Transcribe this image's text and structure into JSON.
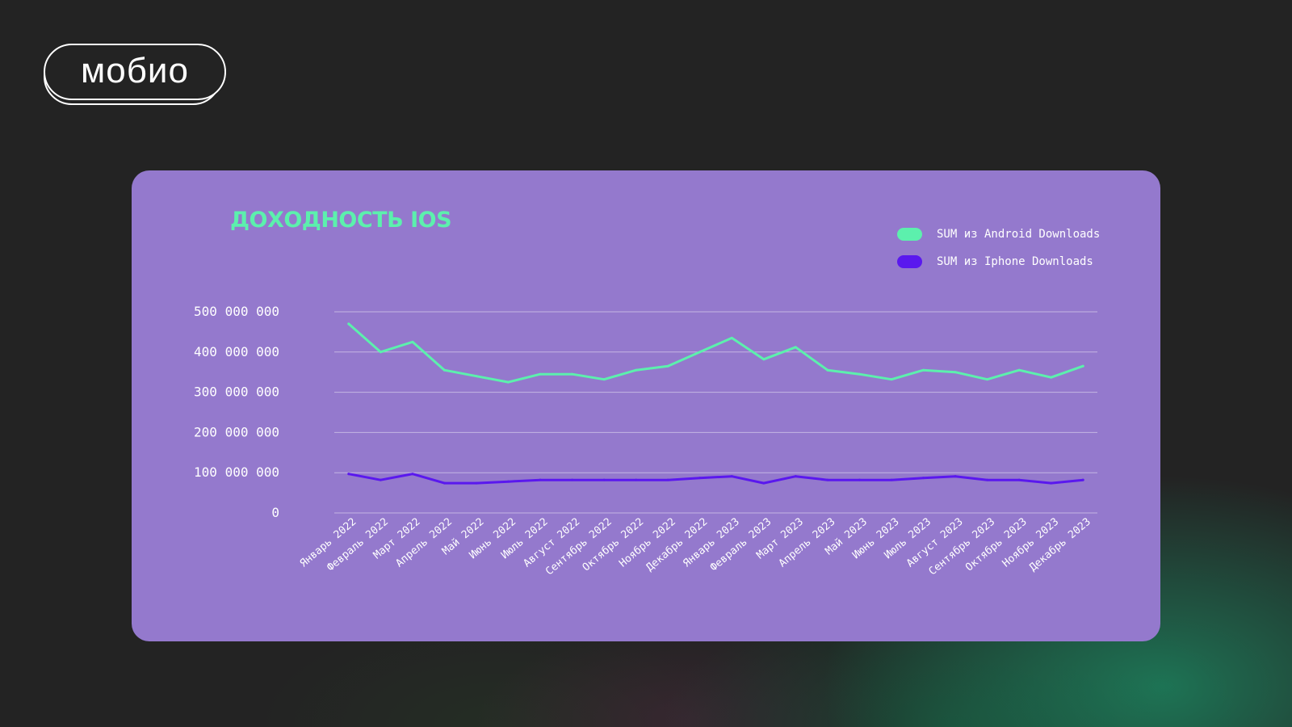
{
  "logo": {
    "text": "мобио"
  },
  "chart_data": {
    "type": "line",
    "title": "ДОХОДНОСТЬ IOS",
    "xlabel": "",
    "ylabel": "",
    "ylim": [
      0,
      500000000
    ],
    "y_ticks": [
      {
        "value": 0,
        "label": "0"
      },
      {
        "value": 100000000,
        "label": "100 000 000"
      },
      {
        "value": 200000000,
        "label": "200 000 000"
      },
      {
        "value": 300000000,
        "label": "300 000 000"
      },
      {
        "value": 400000000,
        "label": "400 000 000"
      },
      {
        "value": 500000000,
        "label": "500 000 000"
      }
    ],
    "grid": true,
    "legend_position": "top-right",
    "categories": [
      "Январь 2022",
      "Февраль 2022",
      "Март 2022",
      "Апрель 2022",
      "Май 2022",
      "Июнь 2022",
      "Июль 2022",
      "Август 2022",
      "Сентябрь 2022",
      "Октябрь 2022",
      "Ноябрь 2022",
      "Декабрь 2022",
      "Январь 2023",
      "Февраль 2023",
      "Март 2023",
      "Апрель 2023",
      "Май 2023",
      "Июнь 2023",
      "Июль 2023",
      "Август 2023",
      "Сентябрь 2023",
      "Октябрь 2023",
      "Ноябрь 2023",
      "Декабрь 2023"
    ],
    "series": [
      {
        "name": "SUM из Android Downloads",
        "color": "#5cf0ad",
        "values": [
          470000000,
          400000000,
          425000000,
          355000000,
          340000000,
          325000000,
          345000000,
          345000000,
          332000000,
          355000000,
          365000000,
          400000000,
          435000000,
          382000000,
          412000000,
          355000000,
          345000000,
          332000000,
          355000000,
          350000000,
          332000000,
          355000000,
          337000000,
          365000000
        ]
      },
      {
        "name": "SUM из Iphone Downloads",
        "color": "#5a18ee",
        "values": [
          97000000,
          82000000,
          97000000,
          74000000,
          74000000,
          78000000,
          82000000,
          82000000,
          82000000,
          82000000,
          82000000,
          87000000,
          91000000,
          74000000,
          91000000,
          82000000,
          82000000,
          82000000,
          87000000,
          91000000,
          82000000,
          82000000,
          74000000,
          82000000
        ]
      }
    ]
  }
}
